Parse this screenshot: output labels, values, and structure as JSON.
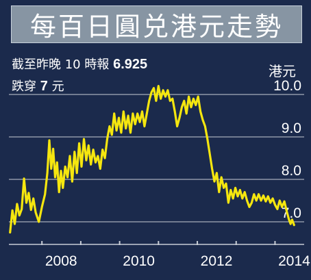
{
  "title": "每百日圓兑港元走勢",
  "info": {
    "line1_prefix": "截至昨晚 10 時報 ",
    "line1_value": "6.925",
    "line2_prefix": "跌穿 ",
    "line2_value": "7",
    "line2_suffix": " 元"
  },
  "colors": {
    "background": "#1b2a4c",
    "title_box": "#8795a3",
    "line": "#f5e60f",
    "grid": "#c8cdd6"
  },
  "chart_data": {
    "type": "line",
    "title": "每百日圓兑港元走勢",
    "ylabel": "港元",
    "xlabel": "",
    "ylim": [
      6.65,
      10.2
    ],
    "xlim": [
      2007.15,
      2014.75
    ],
    "y_ticks": [
      7.0,
      8.0,
      9.0,
      10.0
    ],
    "y_tick_labels": [
      "7.0",
      "8.0",
      "9.0",
      "10.0"
    ],
    "x_ticks": [
      2008,
      2010,
      2012,
      2014
    ],
    "x_tick_labels": [
      "2008",
      "2010",
      "2012",
      "2014"
    ],
    "grid": true,
    "y_axis_position": "right",
    "series": [
      {
        "values": [
          [
            2007.18,
            6.75
          ],
          [
            2007.24,
            7.27
          ],
          [
            2007.3,
            6.95
          ],
          [
            2007.36,
            7.42
          ],
          [
            2007.42,
            7.15
          ],
          [
            2007.48,
            7.3
          ],
          [
            2007.54,
            8.02
          ],
          [
            2007.6,
            7.45
          ],
          [
            2007.66,
            7.68
          ],
          [
            2007.72,
            7.28
          ],
          [
            2007.78,
            7.55
          ],
          [
            2007.84,
            7.22
          ],
          [
            2007.92,
            7.0
          ],
          [
            2008.0,
            7.35
          ],
          [
            2008.08,
            7.65
          ],
          [
            2008.14,
            8.15
          ],
          [
            2008.19,
            8.92
          ],
          [
            2008.24,
            8.25
          ],
          [
            2008.29,
            8.72
          ],
          [
            2008.34,
            8.05
          ],
          [
            2008.39,
            8.4
          ],
          [
            2008.44,
            7.7
          ],
          [
            2008.49,
            8.2
          ],
          [
            2008.54,
            7.8
          ],
          [
            2008.6,
            8.3
          ],
          [
            2008.66,
            8.05
          ],
          [
            2008.72,
            8.55
          ],
          [
            2008.78,
            7.95
          ],
          [
            2008.84,
            8.65
          ],
          [
            2008.9,
            8.15
          ],
          [
            2008.96,
            8.85
          ],
          [
            2009.02,
            8.3
          ],
          [
            2009.08,
            8.95
          ],
          [
            2009.14,
            8.45
          ],
          [
            2009.2,
            8.8
          ],
          [
            2009.26,
            8.35
          ],
          [
            2009.32,
            8.7
          ],
          [
            2009.38,
            8.4
          ],
          [
            2009.44,
            8.55
          ],
          [
            2009.5,
            8.25
          ],
          [
            2009.56,
            8.7
          ],
          [
            2009.62,
            8.5
          ],
          [
            2009.68,
            8.95
          ],
          [
            2009.74,
            9.25
          ],
          [
            2009.8,
            9.05
          ],
          [
            2009.86,
            9.55
          ],
          [
            2009.92,
            9.15
          ],
          [
            2009.98,
            9.45
          ],
          [
            2010.04,
            9.1
          ],
          [
            2010.1,
            9.6
          ],
          [
            2010.16,
            9.2
          ],
          [
            2010.22,
            9.5
          ],
          [
            2010.28,
            9.1
          ],
          [
            2010.34,
            9.55
          ],
          [
            2010.4,
            9.3
          ],
          [
            2010.46,
            9.55
          ],
          [
            2010.52,
            9.35
          ],
          [
            2010.58,
            9.6
          ],
          [
            2010.64,
            9.25
          ],
          [
            2010.7,
            9.55
          ],
          [
            2010.76,
            9.85
          ],
          [
            2010.82,
            10.05
          ],
          [
            2010.88,
            10.15
          ],
          [
            2010.94,
            9.85
          ],
          [
            2011.0,
            10.2
          ],
          [
            2011.06,
            9.9
          ],
          [
            2011.12,
            10.1
          ],
          [
            2011.18,
            9.95
          ],
          [
            2011.24,
            10.1
          ],
          [
            2011.3,
            9.85
          ],
          [
            2011.36,
            9.9
          ],
          [
            2011.42,
            9.6
          ],
          [
            2011.48,
            9.25
          ],
          [
            2011.54,
            9.45
          ],
          [
            2011.6,
            9.7
          ],
          [
            2011.66,
            9.85
          ],
          [
            2011.72,
            9.55
          ],
          [
            2011.78,
            9.95
          ],
          [
            2011.84,
            9.7
          ],
          [
            2011.9,
            9.9
          ],
          [
            2011.96,
            9.75
          ],
          [
            2012.02,
            9.95
          ],
          [
            2012.08,
            9.6
          ],
          [
            2012.14,
            9.4
          ],
          [
            2012.2,
            9.25
          ],
          [
            2012.26,
            8.95
          ],
          [
            2012.32,
            8.6
          ],
          [
            2012.38,
            8.25
          ],
          [
            2012.44,
            7.95
          ],
          [
            2012.5,
            8.15
          ],
          [
            2012.56,
            7.7
          ],
          [
            2012.62,
            8.05
          ],
          [
            2012.68,
            7.8
          ],
          [
            2012.74,
            7.9
          ],
          [
            2012.8,
            7.45
          ],
          [
            2012.86,
            7.75
          ],
          [
            2012.92,
            7.55
          ],
          [
            2012.98,
            7.8
          ],
          [
            2013.04,
            7.6
          ],
          [
            2013.1,
            7.75
          ],
          [
            2013.16,
            7.55
          ],
          [
            2013.22,
            7.7
          ],
          [
            2013.28,
            7.5
          ],
          [
            2013.34,
            7.35
          ],
          [
            2013.4,
            7.45
          ],
          [
            2013.46,
            7.65
          ],
          [
            2013.52,
            7.5
          ],
          [
            2013.58,
            7.65
          ],
          [
            2013.64,
            7.5
          ],
          [
            2013.7,
            7.62
          ],
          [
            2013.76,
            7.48
          ],
          [
            2013.82,
            7.6
          ],
          [
            2013.88,
            7.45
          ],
          [
            2013.94,
            7.55
          ],
          [
            2014.0,
            7.4
          ],
          [
            2014.06,
            7.3
          ],
          [
            2014.12,
            7.5
          ],
          [
            2014.18,
            7.35
          ],
          [
            2014.24,
            7.48
          ],
          [
            2014.3,
            7.25
          ],
          [
            2014.36,
            7.05
          ],
          [
            2014.4,
            6.95
          ],
          [
            2014.44,
            7.05
          ],
          [
            2014.49,
            6.925
          ]
        ]
      }
    ]
  }
}
